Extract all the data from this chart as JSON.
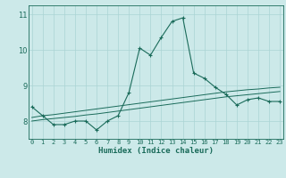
{
  "title": "",
  "xlabel": "Humidex (Indice chaleur)",
  "x_values": [
    0,
    1,
    2,
    3,
    4,
    5,
    6,
    7,
    8,
    9,
    10,
    11,
    12,
    13,
    14,
    15,
    16,
    17,
    18,
    19,
    20,
    21,
    22,
    23
  ],
  "main_line": [
    8.4,
    8.15,
    7.9,
    7.9,
    8.0,
    8.0,
    7.75,
    8.0,
    8.15,
    8.8,
    10.05,
    9.85,
    10.35,
    10.8,
    10.9,
    9.35,
    9.2,
    8.95,
    8.75,
    8.45,
    8.6,
    8.65,
    8.55,
    8.55
  ],
  "trend_line1": [
    8.1,
    8.15,
    8.18,
    8.22,
    8.26,
    8.3,
    8.34,
    8.38,
    8.42,
    8.46,
    8.5,
    8.54,
    8.58,
    8.62,
    8.66,
    8.7,
    8.74,
    8.78,
    8.82,
    8.85,
    8.88,
    8.9,
    8.93,
    8.95
  ],
  "trend_line2": [
    8.0,
    8.04,
    8.07,
    8.1,
    8.13,
    8.17,
    8.2,
    8.24,
    8.28,
    8.32,
    8.36,
    8.4,
    8.44,
    8.48,
    8.52,
    8.56,
    8.6,
    8.64,
    8.68,
    8.71,
    8.74,
    8.77,
    8.8,
    8.83
  ],
  "line_color": "#1a6b5a",
  "bg_color": "#cce9e9",
  "grid_color": "#aad4d4",
  "ylim": [
    7.5,
    11.25
  ],
  "yticks": [
    8,
    9,
    10,
    11
  ],
  "xticks": [
    0,
    1,
    2,
    3,
    4,
    5,
    6,
    7,
    8,
    9,
    10,
    11,
    12,
    13,
    14,
    15,
    16,
    17,
    18,
    19,
    20,
    21,
    22,
    23
  ],
  "xlim": [
    -0.3,
    23.3
  ]
}
